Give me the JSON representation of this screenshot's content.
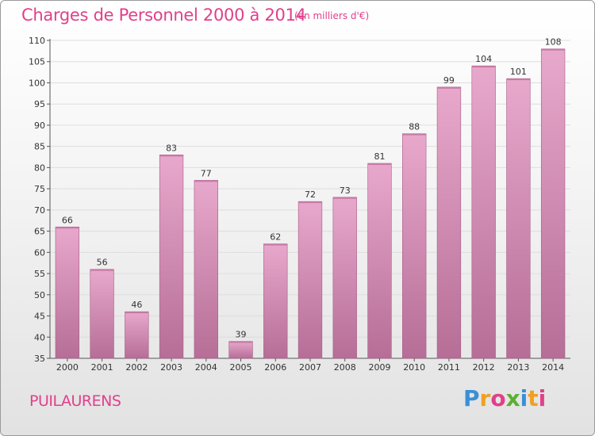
{
  "title": "Charges de Personnel 2000 à 2014",
  "subtitle": "(en milliers d'€)",
  "commune": "PUILAURENS",
  "logo": {
    "text": "Proxiti",
    "colors": [
      "#3a8fd6",
      "#f0a020",
      "#e0408a",
      "#5bb030",
      "#3a8fd6",
      "#f0a020",
      "#e0408a"
    ]
  },
  "colors": {
    "accent": "#e0408a",
    "bar_top": "#e8a8cc",
    "bar_bottom": "#b66e96"
  },
  "chart_data": {
    "type": "bar",
    "categories": [
      "2000",
      "2001",
      "2002",
      "2003",
      "2004",
      "2005",
      "2006",
      "2007",
      "2008",
      "2009",
      "2010",
      "2011",
      "2012",
      "2013",
      "2014"
    ],
    "values": [
      66,
      56,
      46,
      83,
      77,
      39,
      62,
      72,
      73,
      81,
      88,
      99,
      104,
      101,
      108
    ],
    "ylim": [
      35,
      110
    ],
    "yticks": [
      35,
      40,
      45,
      50,
      55,
      60,
      65,
      70,
      75,
      80,
      85,
      90,
      95,
      100,
      105,
      110
    ],
    "grid": true,
    "xlabel": "",
    "ylabel": ""
  }
}
